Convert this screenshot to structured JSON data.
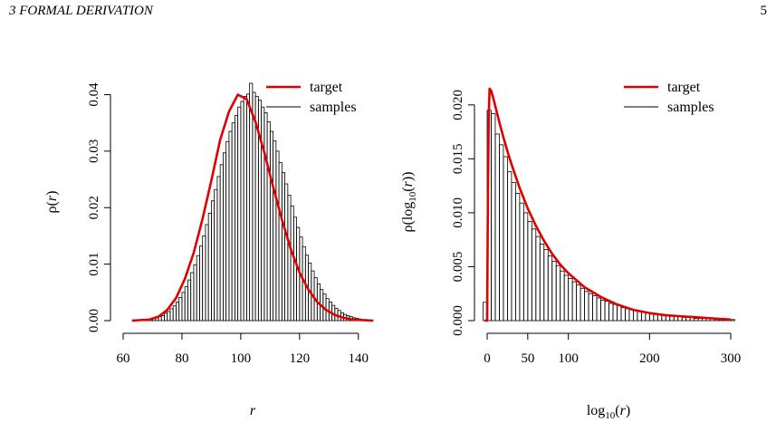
{
  "header": {
    "section": "3  FORMAL DERIVATION",
    "page_number": "5"
  },
  "chart_data": [
    {
      "type": "bar",
      "xlabel": "r",
      "ylabel": "ρ(r)",
      "xlim": [
        60,
        145
      ],
      "ylim": [
        0,
        0.042
      ],
      "xticks": [
        60,
        80,
        100,
        120,
        140
      ],
      "yticks": [
        "0.00",
        "0.01",
        "0.02",
        "0.03",
        "0.04"
      ],
      "legend": {
        "position": "top-right",
        "entries": [
          "target",
          "samples"
        ]
      },
      "series": [
        {
          "name": "target",
          "type": "line",
          "color": "#e00000",
          "x": [
            63,
            66,
            69,
            72,
            75,
            78,
            81,
            84,
            87,
            90,
            93,
            96,
            99,
            102,
            105,
            108,
            111,
            114,
            117,
            120,
            123,
            126,
            129,
            132,
            135,
            138,
            141,
            145
          ],
          "values": [
            0.0,
            0.0001,
            0.0002,
            0.0007,
            0.0019,
            0.004,
            0.0074,
            0.012,
            0.018,
            0.0248,
            0.032,
            0.037,
            0.04,
            0.0392,
            0.0352,
            0.0298,
            0.0237,
            0.0179,
            0.0127,
            0.0085,
            0.0055,
            0.0033,
            0.0019,
            0.001,
            0.0005,
            0.0002,
            0.0001,
            0.0
          ]
        },
        {
          "name": "samples",
          "type": "histogram",
          "color": "#000000",
          "bin_width": 1,
          "bin_start": 64,
          "values": [
            0.0,
            0.0,
            0.0001,
            0.0001,
            0.0002,
            0.0003,
            0.0004,
            0.0005,
            0.0007,
            0.0009,
            0.0013,
            0.0016,
            0.0021,
            0.0026,
            0.0033,
            0.0041,
            0.005,
            0.006,
            0.0072,
            0.0085,
            0.0099,
            0.0115,
            0.0132,
            0.015,
            0.017,
            0.019,
            0.0212,
            0.0232,
            0.0255,
            0.0276,
            0.0297,
            0.0317,
            0.0335,
            0.035,
            0.0363,
            0.0378,
            0.0388,
            0.0397,
            0.0401,
            0.042,
            0.0404,
            0.0397,
            0.039,
            0.0378,
            0.0368,
            0.0352,
            0.0335,
            0.0318,
            0.03,
            0.028,
            0.0262,
            0.0242,
            0.0222,
            0.0203,
            0.0183,
            0.0165,
            0.0148,
            0.0131,
            0.0116,
            0.0102,
            0.0088,
            0.0076,
            0.0065,
            0.0055,
            0.0047,
            0.0039,
            0.0033,
            0.0027,
            0.0022,
            0.0018,
            0.0014,
            0.0011,
            0.0009,
            0.0007,
            0.0005,
            0.0004,
            0.0003,
            0.0002,
            0.0002,
            0.0001,
            0.0001
          ]
        }
      ]
    },
    {
      "type": "bar",
      "xlabel": "log10(r)",
      "ylabel": "ρ(log10(r))",
      "xlim": [
        0,
        300
      ],
      "ylim": [
        0,
        0.022
      ],
      "xticks": [
        0,
        50,
        100,
        200,
        300
      ],
      "yticks": [
        "0.000",
        "0.005",
        "0.010",
        "0.015",
        "0.020"
      ],
      "legend": {
        "position": "top-right",
        "entries": [
          "target",
          "samples"
        ]
      },
      "series": [
        {
          "name": "target",
          "type": "line",
          "color": "#e00000",
          "x": [
            -3,
            0,
            1,
            2,
            3,
            5,
            8,
            12,
            16,
            20,
            25,
            30,
            40,
            50,
            60,
            70,
            80,
            90,
            100,
            120,
            140,
            160,
            180,
            200,
            220,
            240,
            260,
            280,
            300
          ],
          "values": [
            0.0,
            0.0,
            0.012,
            0.019,
            0.0215,
            0.0213,
            0.0205,
            0.0193,
            0.0181,
            0.017,
            0.0157,
            0.0145,
            0.0123,
            0.0104,
            0.0088,
            0.0074,
            0.0062,
            0.0052,
            0.0044,
            0.0031,
            0.0022,
            0.0015,
            0.001,
            0.0007,
            0.0005,
            0.0004,
            0.0003,
            0.0002,
            0.0001
          ]
        },
        {
          "name": "samples",
          "type": "histogram",
          "color": "#000000",
          "bin_width": 5,
          "bin_start": -5,
          "values": [
            0.0017,
            0.0195,
            0.0192,
            0.0173,
            0.0163,
            0.0152,
            0.0138,
            0.0128,
            0.0118,
            0.0109,
            0.01,
            0.0092,
            0.0085,
            0.0078,
            0.0071,
            0.0066,
            0.006,
            0.0055,
            0.0051,
            0.0046,
            0.0042,
            0.0039,
            0.0036,
            0.0033,
            0.003,
            0.0027,
            0.0025,
            0.0023,
            0.0021,
            0.0019,
            0.0018,
            0.0016,
            0.0015,
            0.0014,
            0.0012,
            0.0011,
            0.001,
            0.001,
            0.0009,
            0.0008,
            0.0007,
            0.0007,
            0.0006,
            0.0006,
            0.0005,
            0.0005,
            0.0004,
            0.0004,
            0.0004,
            0.0003,
            0.0003,
            0.0003,
            0.0002,
            0.0002,
            0.0002,
            0.0002,
            0.0002,
            0.0001,
            0.0001,
            0.0001,
            0.0001,
            0.0001
          ]
        }
      ]
    }
  ]
}
